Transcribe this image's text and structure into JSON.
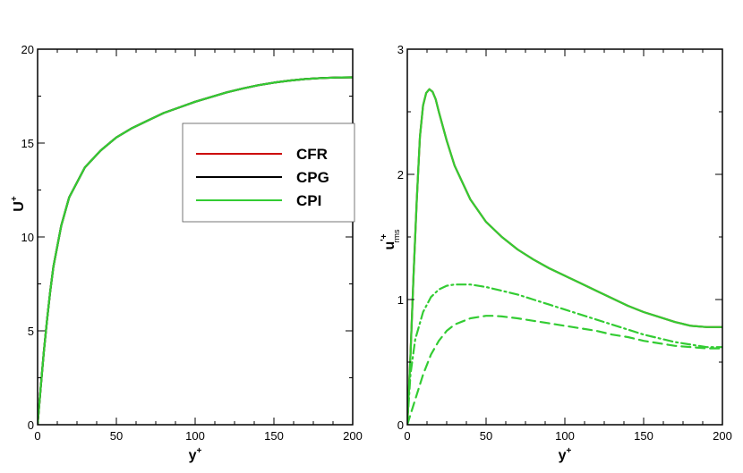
{
  "chart_data": [
    {
      "type": "line",
      "xlabel": "y",
      "xlabel_sup": "+",
      "ylabel": "U",
      "ylabel_sup": "+",
      "xlim": [
        0,
        200
      ],
      "ylim": [
        0,
        20
      ],
      "xticks": [
        0,
        50,
        100,
        150,
        200
      ],
      "yticks": [
        0,
        5,
        10,
        15,
        20
      ],
      "x_tick_labels": [
        "0",
        "50",
        "100",
        "150",
        "200"
      ],
      "y_tick_labels": [
        "0",
        "5",
        "10",
        "15",
        "20"
      ],
      "grid": false,
      "legend_placement": "right",
      "series": [
        {
          "name": "CFR",
          "color": "#cc0000",
          "style": "solid",
          "x": [
            0,
            2,
            4,
            6,
            8,
            10,
            15,
            20,
            30,
            40,
            50,
            60,
            70,
            80,
            90,
            100,
            110,
            120,
            130,
            140,
            150,
            160,
            170,
            180,
            190,
            200
          ],
          "y": [
            0,
            2,
            3.9,
            5.6,
            7.1,
            8.4,
            10.6,
            12.1,
            13.7,
            14.6,
            15.3,
            15.8,
            16.2,
            16.6,
            16.9,
            17.2,
            17.45,
            17.7,
            17.9,
            18.08,
            18.22,
            18.33,
            18.41,
            18.46,
            18.49,
            18.5
          ]
        },
        {
          "name": "CPG",
          "color": "#000000",
          "style": "solid",
          "x": [
            0,
            2,
            4,
            6,
            8,
            10,
            15,
            20,
            30,
            40,
            50,
            60,
            70,
            80,
            90,
            100,
            110,
            120,
            130,
            140,
            150,
            160,
            170,
            180,
            190,
            200
          ],
          "y": [
            0,
            2,
            3.9,
            5.6,
            7.1,
            8.4,
            10.6,
            12.1,
            13.7,
            14.6,
            15.3,
            15.8,
            16.2,
            16.6,
            16.9,
            17.2,
            17.45,
            17.7,
            17.9,
            18.08,
            18.22,
            18.33,
            18.41,
            18.46,
            18.49,
            18.5
          ]
        },
        {
          "name": "CPI",
          "color": "#33cc33",
          "style": "solid",
          "x": [
            0,
            2,
            4,
            6,
            8,
            10,
            15,
            20,
            30,
            40,
            50,
            60,
            70,
            80,
            90,
            100,
            110,
            120,
            130,
            140,
            150,
            160,
            170,
            180,
            190,
            200
          ],
          "y": [
            0,
            2,
            3.9,
            5.6,
            7.1,
            8.4,
            10.6,
            12.1,
            13.7,
            14.6,
            15.3,
            15.8,
            16.2,
            16.6,
            16.9,
            17.2,
            17.45,
            17.7,
            17.9,
            18.08,
            18.22,
            18.33,
            18.41,
            18.46,
            18.49,
            18.5
          ]
        }
      ]
    },
    {
      "type": "line",
      "xlabel": "y",
      "xlabel_sup": "+",
      "ylabel": "u",
      "ylabel_sup": "'+",
      "ylabel_sub": "rms",
      "xlim": [
        0,
        200
      ],
      "ylim": [
        0,
        3
      ],
      "xticks": [
        0,
        50,
        100,
        150,
        200
      ],
      "yticks": [
        0,
        1,
        2,
        3
      ],
      "x_tick_labels": [
        "0",
        "50",
        "100",
        "150",
        "200"
      ],
      "y_tick_labels": [
        "0",
        "1",
        "2",
        "3"
      ],
      "grid": false,
      "series": [
        {
          "color": "#cc0000",
          "style": "solid",
          "x": [
            0,
            2,
            4,
            6,
            8,
            10,
            12,
            14,
            16,
            18,
            20,
            25,
            30,
            40,
            50,
            60,
            70,
            80,
            90,
            100,
            110,
            120,
            130,
            140,
            150,
            160,
            170,
            180,
            190,
            200
          ],
          "y": [
            0,
            0.55,
            1.2,
            1.8,
            2.3,
            2.55,
            2.65,
            2.68,
            2.66,
            2.6,
            2.5,
            2.27,
            2.07,
            1.8,
            1.62,
            1.5,
            1.4,
            1.32,
            1.25,
            1.19,
            1.13,
            1.07,
            1.01,
            0.95,
            0.9,
            0.86,
            0.82,
            0.79,
            0.78,
            0.78
          ]
        },
        {
          "color": "#33cc33",
          "style": "solid",
          "x": [
            0,
            2,
            4,
            6,
            8,
            10,
            12,
            14,
            16,
            18,
            20,
            25,
            30,
            40,
            50,
            60,
            70,
            80,
            90,
            100,
            110,
            120,
            130,
            140,
            150,
            160,
            170,
            180,
            190,
            200
          ],
          "y": [
            0,
            0.55,
            1.2,
            1.8,
            2.3,
            2.55,
            2.65,
            2.68,
            2.66,
            2.6,
            2.5,
            2.27,
            2.07,
            1.8,
            1.62,
            1.5,
            1.4,
            1.32,
            1.25,
            1.19,
            1.13,
            1.07,
            1.01,
            0.95,
            0.9,
            0.86,
            0.82,
            0.79,
            0.78,
            0.78
          ]
        },
        {
          "color": "#33cc33",
          "style": "dashdot",
          "x": [
            0,
            2,
            5,
            10,
            15,
            20,
            25,
            30,
            35,
            40,
            50,
            60,
            70,
            80,
            90,
            100,
            110,
            120,
            130,
            140,
            150,
            160,
            170,
            180,
            190,
            200
          ],
          "y": [
            0,
            0.4,
            0.68,
            0.9,
            1.02,
            1.08,
            1.11,
            1.12,
            1.12,
            1.12,
            1.1,
            1.07,
            1.04,
            1.0,
            0.96,
            0.92,
            0.88,
            0.84,
            0.8,
            0.76,
            0.72,
            0.69,
            0.66,
            0.64,
            0.62,
            0.62
          ]
        },
        {
          "color": "#33cc33",
          "style": "dashed",
          "x": [
            0,
            2,
            5,
            10,
            15,
            20,
            25,
            30,
            40,
            50,
            55,
            60,
            70,
            80,
            90,
            100,
            110,
            120,
            130,
            140,
            150,
            160,
            170,
            180,
            190,
            200
          ],
          "y": [
            0,
            0.08,
            0.2,
            0.4,
            0.56,
            0.67,
            0.75,
            0.8,
            0.85,
            0.87,
            0.87,
            0.865,
            0.85,
            0.83,
            0.81,
            0.79,
            0.77,
            0.75,
            0.72,
            0.7,
            0.67,
            0.65,
            0.63,
            0.62,
            0.61,
            0.61
          ]
        }
      ]
    }
  ]
}
